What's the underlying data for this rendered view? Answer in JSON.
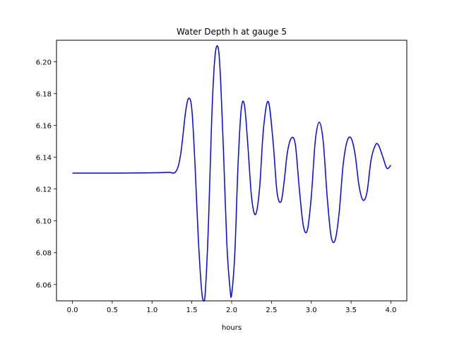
{
  "chart_data": {
    "type": "line",
    "title": "Water Depth h at gauge 5",
    "xlabel": "hours",
    "ylabel": "",
    "xlim": [
      -0.2,
      4.2
    ],
    "ylim": [
      6.0497,
      6.2135
    ],
    "xticks": [
      0.0,
      0.5,
      1.0,
      1.5,
      2.0,
      2.5,
      3.0,
      3.5,
      4.0
    ],
    "xtick_labels": [
      "0.0",
      "0.5",
      "1.0",
      "1.5",
      "2.0",
      "2.5",
      "3.0",
      "3.5",
      "4.0"
    ],
    "yticks": [
      6.06,
      6.08,
      6.1,
      6.12,
      6.14,
      6.16,
      6.18,
      6.2
    ],
    "ytick_labels": [
      "6.06",
      "6.08",
      "6.10",
      "6.12",
      "6.14",
      "6.16",
      "6.18",
      "6.20"
    ],
    "grid": false,
    "colors": {
      "series": "#0000ff",
      "axes": "#000000",
      "background": "#ffffff"
    },
    "series": [
      {
        "x": [
          0.0,
          0.5,
          1.0,
          1.2,
          1.3,
          1.36,
          1.42,
          1.46,
          1.5,
          1.54,
          1.58,
          1.62,
          1.645,
          1.67,
          1.71,
          1.75,
          1.79,
          1.83,
          1.86,
          1.9,
          1.94,
          1.98,
          2.0,
          2.04,
          2.08,
          2.12,
          2.16,
          2.2,
          2.25,
          2.3,
          2.35,
          2.4,
          2.46,
          2.52,
          2.57,
          2.62,
          2.66,
          2.7,
          2.75,
          2.8,
          2.85,
          2.9,
          2.95,
          3.0,
          3.05,
          3.1,
          3.15,
          3.2,
          3.25,
          3.3,
          3.35,
          3.4,
          3.45,
          3.5,
          3.55,
          3.6,
          3.65,
          3.7,
          3.75,
          3.8,
          3.84,
          3.9,
          3.95,
          4.0
        ],
        "y": [
          6.13,
          6.13,
          6.1302,
          6.1305,
          6.131,
          6.142,
          6.168,
          6.177,
          6.17,
          6.135,
          6.09,
          6.058,
          6.05,
          6.056,
          6.1,
          6.165,
          6.203,
          6.209,
          6.19,
          6.14,
          6.085,
          6.057,
          6.054,
          6.08,
          6.135,
          6.17,
          6.173,
          6.15,
          6.115,
          6.104,
          6.12,
          6.158,
          6.175,
          6.15,
          6.118,
          6.112,
          6.125,
          6.143,
          6.152,
          6.148,
          6.12,
          6.097,
          6.094,
          6.115,
          6.15,
          6.162,
          6.15,
          6.115,
          6.09,
          6.088,
          6.105,
          6.135,
          6.15,
          6.152,
          6.142,
          6.122,
          6.113,
          6.118,
          6.138,
          6.147,
          6.148,
          6.14,
          6.133,
          6.135
        ]
      }
    ]
  }
}
